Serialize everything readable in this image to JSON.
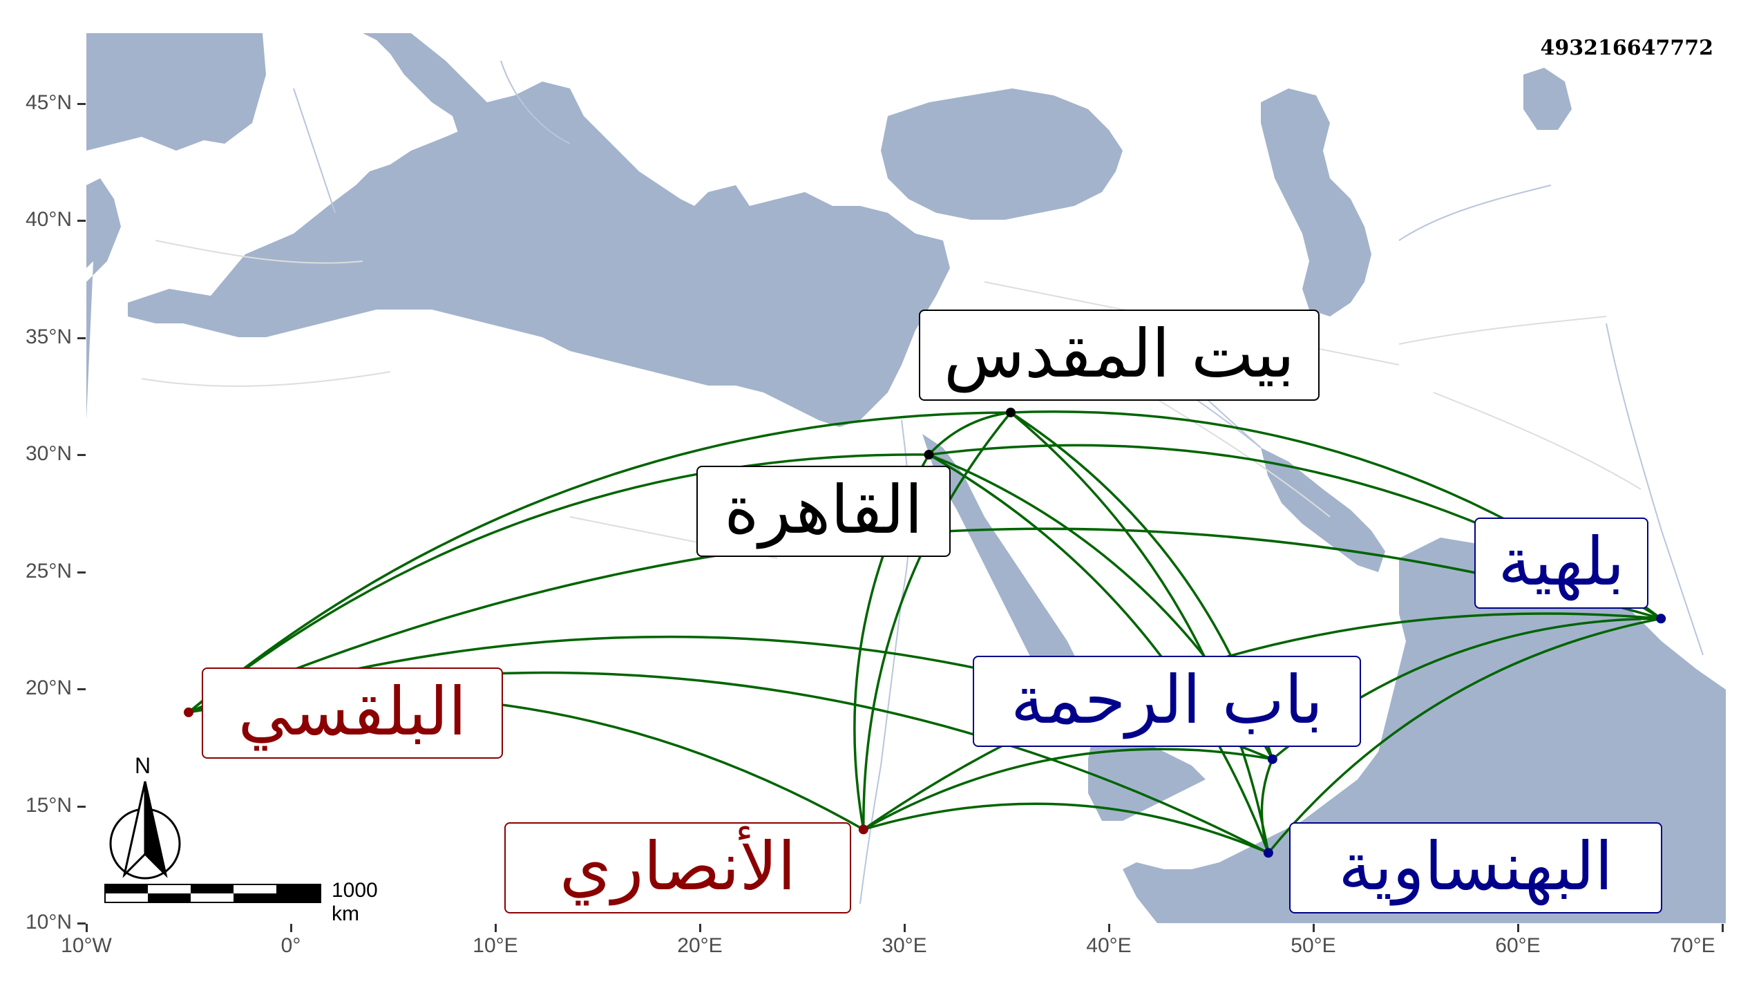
{
  "map_id": "493216647772",
  "axes": {
    "y_ticks": [
      "45°N",
      "40°N",
      "35°N",
      "30°N",
      "25°N",
      "20°N",
      "15°N",
      "10°N"
    ],
    "x_ticks": [
      "10°W",
      "0°",
      "10°E",
      "20°E",
      "30°E",
      "40°E",
      "50°E",
      "60°E",
      "70°E"
    ]
  },
  "places": [
    {
      "id": "bayt-al-maqdis",
      "label": "بيت المقدس",
      "color": "#000000",
      "lon": 35.2,
      "lat": 31.8
    },
    {
      "id": "al-qahira",
      "label": "القاهرة",
      "color": "#000000",
      "lon": 31.2,
      "lat": 30.0
    },
    {
      "id": "bilhiya",
      "label": "بلهية",
      "color": "#00008B",
      "lon": 67.0,
      "lat": 23.0
    },
    {
      "id": "bab-al-rahma",
      "label": "باب الرحمة",
      "color": "#00008B",
      "lon": 48.0,
      "lat": 17.0
    },
    {
      "id": "al-bahnasawiya",
      "label": "البهنساوية",
      "color": "#00008B",
      "lon": 47.8,
      "lat": 13.0
    },
    {
      "id": "al-balqasi",
      "label": "البلقسي",
      "color": "#8B0000",
      "lon": -5.0,
      "lat": 19.0
    },
    {
      "id": "al-ansari",
      "label": "الأنصاري",
      "color": "#8B0000",
      "lon": 28.0,
      "lat": 14.0
    }
  ],
  "scale_bar": {
    "label": "1000 km"
  },
  "north_arrow": {
    "label": "N"
  },
  "colors": {
    "water": "#A3B3CC",
    "land": "#FFFFFF",
    "route": "#006400",
    "rivers": "#B8C6DC",
    "roads": "#DDDDDD"
  }
}
